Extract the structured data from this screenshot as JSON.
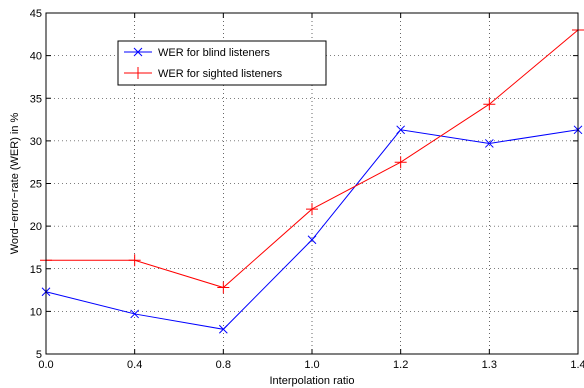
{
  "chart_data": {
    "type": "line",
    "title": "",
    "xlabel": "Interpolation ratio",
    "ylabel": "Word−error−rate (WER) in %",
    "categories": [
      "0.0",
      "0.4",
      "0.8",
      "1.0",
      "1.2",
      "1.3",
      "1.4"
    ],
    "ylim": [
      5,
      45
    ],
    "yticks": [
      5,
      10,
      15,
      20,
      25,
      30,
      35,
      40,
      45
    ],
    "grid": true,
    "legend_position": "top-left",
    "series": [
      {
        "name": "WER for blind listeners",
        "color": "#0000ff",
        "marker": "x",
        "values": [
          12.3,
          9.7,
          7.9,
          18.4,
          31.3,
          29.7,
          31.3
        ]
      },
      {
        "name": "WER for sighted listeners",
        "color": "#ff0000",
        "marker": "+",
        "values": [
          16.0,
          16.0,
          12.8,
          22.0,
          27.5,
          34.3,
          43.0
        ]
      }
    ]
  }
}
